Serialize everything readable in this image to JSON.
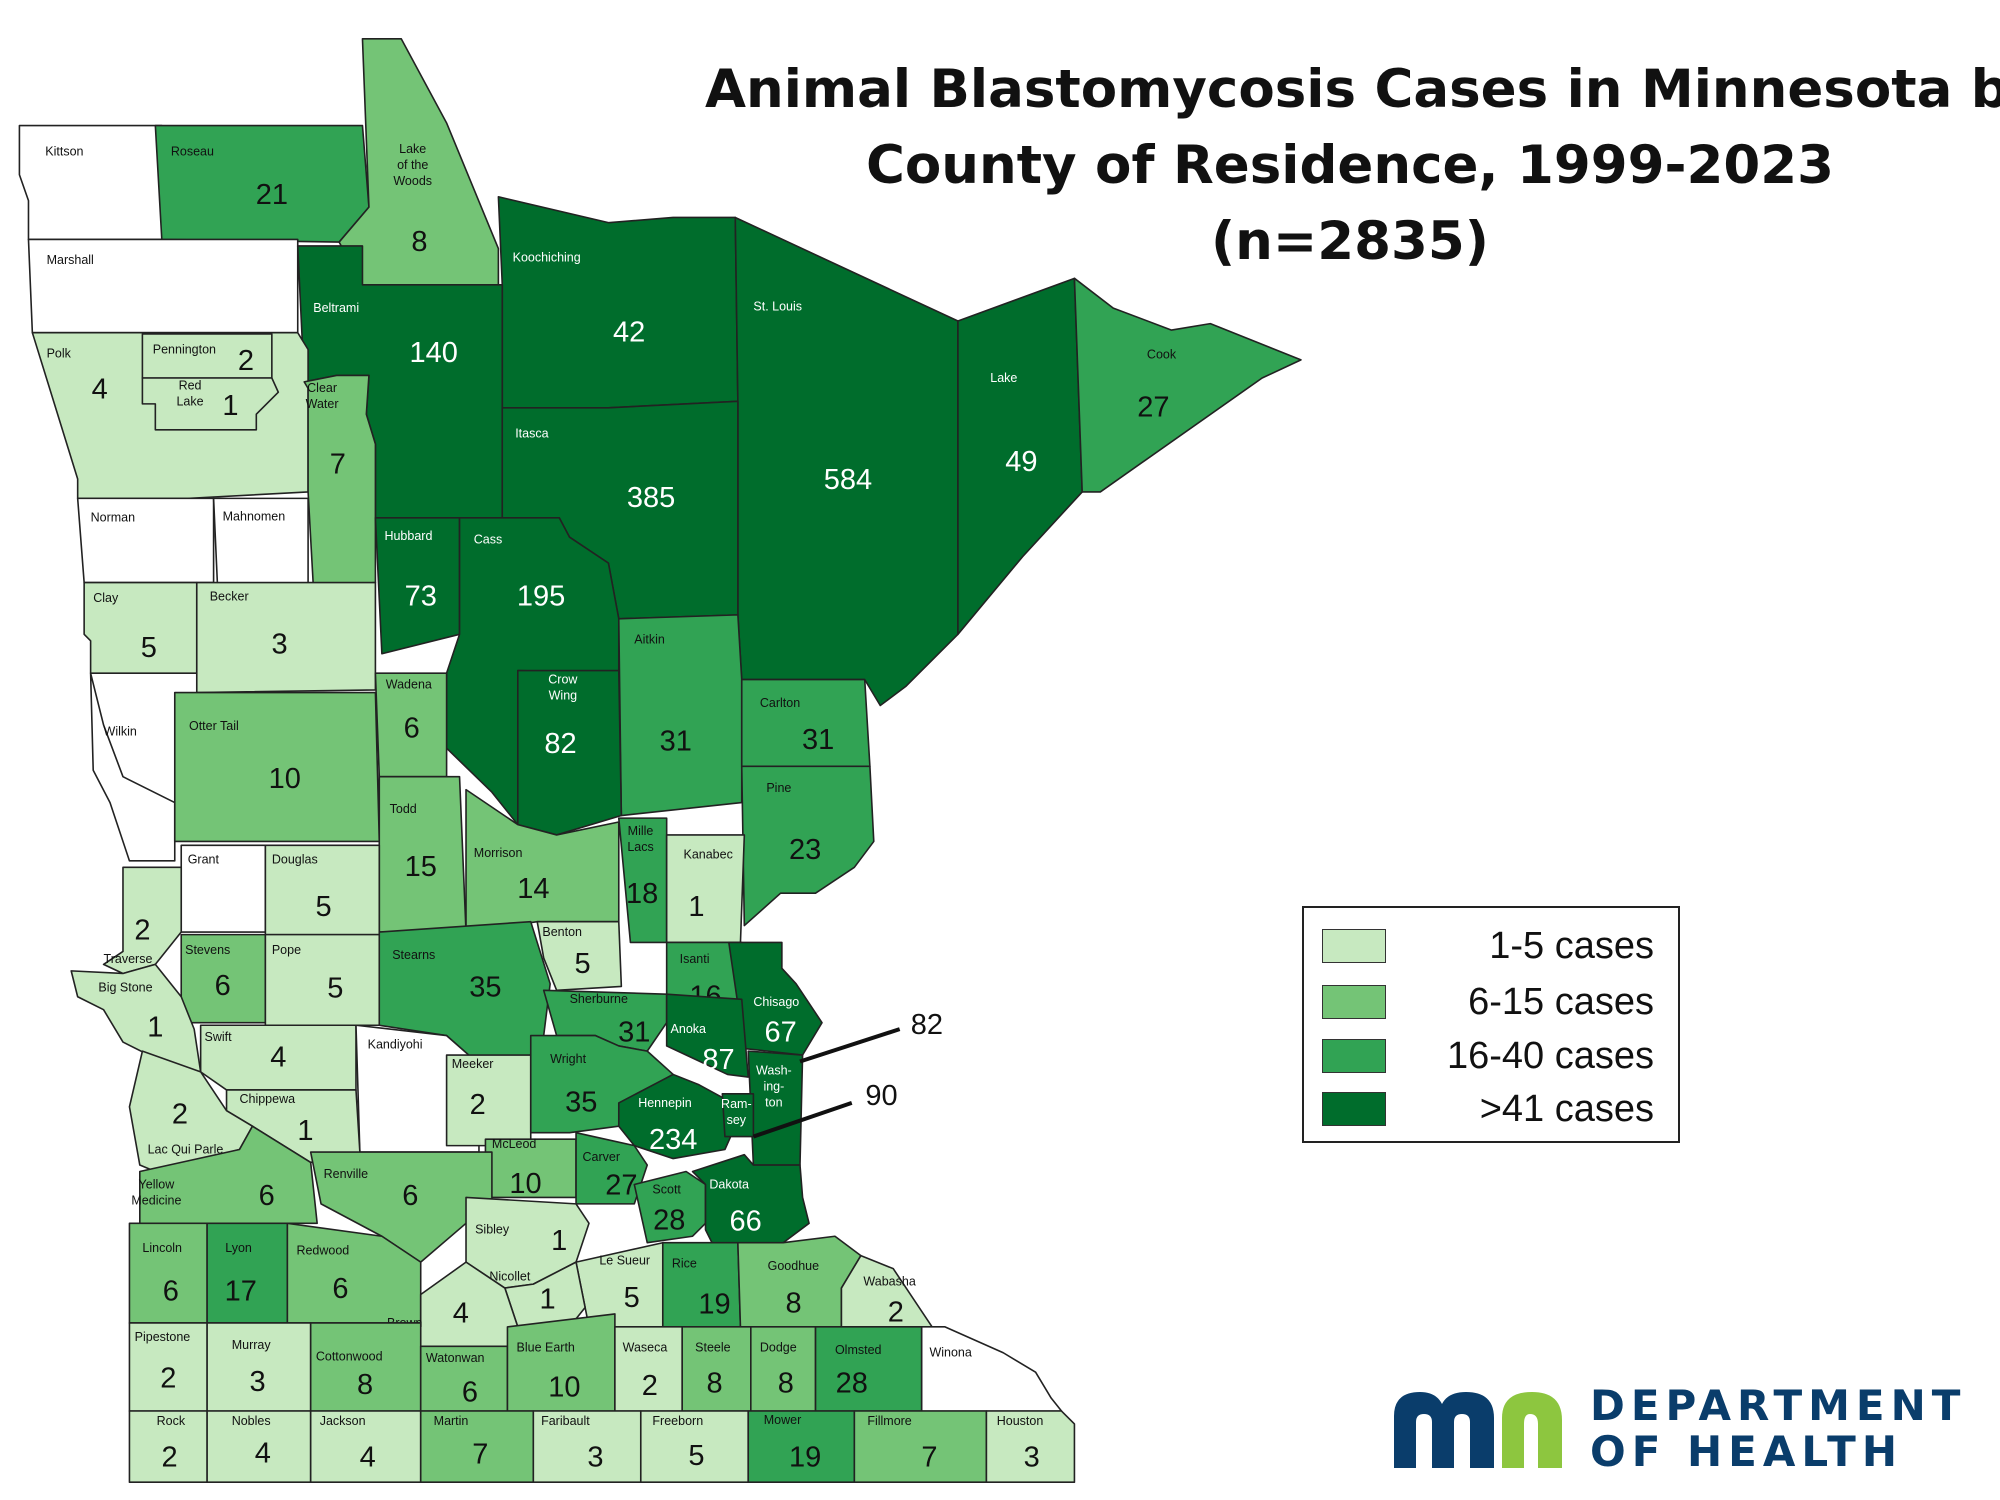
{
  "title": {
    "line1": "Animal Blastomycosis Cases in Minnesota by",
    "line2": "County of Residence, 1999-2023",
    "line3": "(n=2835)"
  },
  "colors": {
    "none": "#ffffff",
    "c1": "#c7e9c0",
    "c2": "#74c476",
    "c3": "#31a354",
    "c4": "#006d2c",
    "border": "#222222"
  },
  "legend": [
    {
      "label": "1-5 cases",
      "color": "#c7e9c0"
    },
    {
      "label": "6-15 cases",
      "color": "#74c476"
    },
    {
      "label": "16-40 cases",
      "color": "#31a354"
    },
    {
      "label": ">41 cases",
      "color": "#006d2c"
    }
  ],
  "callouts": [
    {
      "county": "Washington",
      "value": "82"
    },
    {
      "county": "Ramsey",
      "value": "90"
    }
  ],
  "counties": [
    {
      "name": "Kittson",
      "value": "",
      "cat": "none"
    },
    {
      "name": "Roseau",
      "value": "21",
      "cat": "c3"
    },
    {
      "name": "Lake of the Woods",
      "value": "8",
      "cat": "c2"
    },
    {
      "name": "Marshall",
      "value": "",
      "cat": "none"
    },
    {
      "name": "Koochiching",
      "value": "42",
      "cat": "c4"
    },
    {
      "name": "Beltrami",
      "value": "140",
      "cat": "c4"
    },
    {
      "name": "St. Louis",
      "value": "584",
      "cat": "c4"
    },
    {
      "name": "Lake",
      "value": "49",
      "cat": "c4"
    },
    {
      "name": "Cook",
      "value": "27",
      "cat": "c3"
    },
    {
      "name": "Polk",
      "value": "4",
      "cat": "c1"
    },
    {
      "name": "Pennington",
      "value": "2",
      "cat": "c1"
    },
    {
      "name": "Red Lake",
      "value": "1",
      "cat": "c1"
    },
    {
      "name": "Clear Water",
      "value": "7",
      "cat": "c2"
    },
    {
      "name": "Itasca",
      "value": "385",
      "cat": "c4"
    },
    {
      "name": "Norman",
      "value": "",
      "cat": "none"
    },
    {
      "name": "Mahnomen",
      "value": "",
      "cat": "none"
    },
    {
      "name": "Hubbard",
      "value": "73",
      "cat": "c4"
    },
    {
      "name": "Cass",
      "value": "195",
      "cat": "c4"
    },
    {
      "name": "Clay",
      "value": "5",
      "cat": "c1"
    },
    {
      "name": "Becker",
      "value": "3",
      "cat": "c1"
    },
    {
      "name": "Aitkin",
      "value": "31",
      "cat": "c3"
    },
    {
      "name": "Carlton",
      "value": "31",
      "cat": "c3"
    },
    {
      "name": "Wadena",
      "value": "6",
      "cat": "c2"
    },
    {
      "name": "Crow Wing",
      "value": "82",
      "cat": "c4"
    },
    {
      "name": "Wilkin",
      "value": "",
      "cat": "none"
    },
    {
      "name": "Otter Tail",
      "value": "10",
      "cat": "c2"
    },
    {
      "name": "Pine",
      "value": "23",
      "cat": "c3"
    },
    {
      "name": "Todd",
      "value": "15",
      "cat": "c2"
    },
    {
      "name": "Morrison",
      "value": "14",
      "cat": "c2"
    },
    {
      "name": "Mille Lacs",
      "value": "18",
      "cat": "c3"
    },
    {
      "name": "Kanabec",
      "value": "1",
      "cat": "c1"
    },
    {
      "name": "Grant",
      "value": "",
      "cat": "none"
    },
    {
      "name": "Douglas",
      "value": "5",
      "cat": "c1"
    },
    {
      "name": "Traverse",
      "value": "2",
      "cat": "c1"
    },
    {
      "name": "Stevens",
      "value": "6",
      "cat": "c2"
    },
    {
      "name": "Pope",
      "value": "5",
      "cat": "c1"
    },
    {
      "name": "Stearns",
      "value": "35",
      "cat": "c3"
    },
    {
      "name": "Benton",
      "value": "5",
      "cat": "c1"
    },
    {
      "name": "Isanti",
      "value": "16",
      "cat": "c3"
    },
    {
      "name": "Chisago",
      "value": "67",
      "cat": "c4"
    },
    {
      "name": "Big Stone",
      "value": "1",
      "cat": "c1"
    },
    {
      "name": "Sherburne",
      "value": "31",
      "cat": "c3"
    },
    {
      "name": "Anoka",
      "value": "87",
      "cat": "c4"
    },
    {
      "name": "Swift",
      "value": "4",
      "cat": "c1"
    },
    {
      "name": "Kandiyohi",
      "value": "",
      "cat": "none"
    },
    {
      "name": "Meeker",
      "value": "2",
      "cat": "c1"
    },
    {
      "name": "Wright",
      "value": "35",
      "cat": "c3"
    },
    {
      "name": "Washington",
      "value": "",
      "cat": "c4"
    },
    {
      "name": "Chippewa",
      "value": "1",
      "cat": "c1"
    },
    {
      "name": "Hennepin",
      "value": "234",
      "cat": "c4"
    },
    {
      "name": "Ramsey",
      "value": "",
      "cat": "c4"
    },
    {
      "name": "Lac Qui Parle",
      "value": "2",
      "cat": "c1"
    },
    {
      "name": "McLeod",
      "value": "10",
      "cat": "c2"
    },
    {
      "name": "Carver",
      "value": "27",
      "cat": "c3"
    },
    {
      "name": "Yellow Medicine",
      "value": "6",
      "cat": "c2"
    },
    {
      "name": "Renville",
      "value": "6",
      "cat": "c2"
    },
    {
      "name": "Scott",
      "value": "28",
      "cat": "c3"
    },
    {
      "name": "Dakota",
      "value": "66",
      "cat": "c4"
    },
    {
      "name": "Sibley",
      "value": "1",
      "cat": "c1"
    },
    {
      "name": "Lincoln",
      "value": "6",
      "cat": "c2"
    },
    {
      "name": "Lyon",
      "value": "17",
      "cat": "c3"
    },
    {
      "name": "Redwood",
      "value": "6",
      "cat": "c2"
    },
    {
      "name": "Le Sueur",
      "value": "5",
      "cat": "c1"
    },
    {
      "name": "Rice",
      "value": "19",
      "cat": "c3"
    },
    {
      "name": "Goodhue",
      "value": "8",
      "cat": "c2"
    },
    {
      "name": "Nicollet",
      "value": "1",
      "cat": "c1"
    },
    {
      "name": "Wabasha",
      "value": "2",
      "cat": "c1"
    },
    {
      "name": "Brown",
      "value": "4",
      "cat": "c1"
    },
    {
      "name": "Pipestone",
      "value": "2",
      "cat": "c1"
    },
    {
      "name": "Murray",
      "value": "3",
      "cat": "c1"
    },
    {
      "name": "Cottonwood",
      "value": "8",
      "cat": "c2"
    },
    {
      "name": "Watonwan",
      "value": "6",
      "cat": "c2"
    },
    {
      "name": "Blue Earth",
      "value": "10",
      "cat": "c2"
    },
    {
      "name": "Waseca",
      "value": "2",
      "cat": "c1"
    },
    {
      "name": "Steele",
      "value": "8",
      "cat": "c2"
    },
    {
      "name": "Dodge",
      "value": "8",
      "cat": "c2"
    },
    {
      "name": "Olmsted",
      "value": "28",
      "cat": "c3"
    },
    {
      "name": "Winona",
      "value": "",
      "cat": "none"
    },
    {
      "name": "Rock",
      "value": "2",
      "cat": "c1"
    },
    {
      "name": "Nobles",
      "value": "4",
      "cat": "c1"
    },
    {
      "name": "Jackson",
      "value": "4",
      "cat": "c1"
    },
    {
      "name": "Martin",
      "value": "7",
      "cat": "c2"
    },
    {
      "name": "Faribault",
      "value": "3",
      "cat": "c1"
    },
    {
      "name": "Freeborn",
      "value": "5",
      "cat": "c1"
    },
    {
      "name": "Mower",
      "value": "19",
      "cat": "c3"
    },
    {
      "name": "Fillmore",
      "value": "7",
      "cat": "c2"
    },
    {
      "name": "Houston",
      "value": "3",
      "cat": "c1"
    }
  ],
  "logo": {
    "line1": "DEPARTMENT",
    "line2": "OF HEALTH",
    "mark_blue": "#0a3d6b",
    "mark_green": "#8dc63f"
  }
}
